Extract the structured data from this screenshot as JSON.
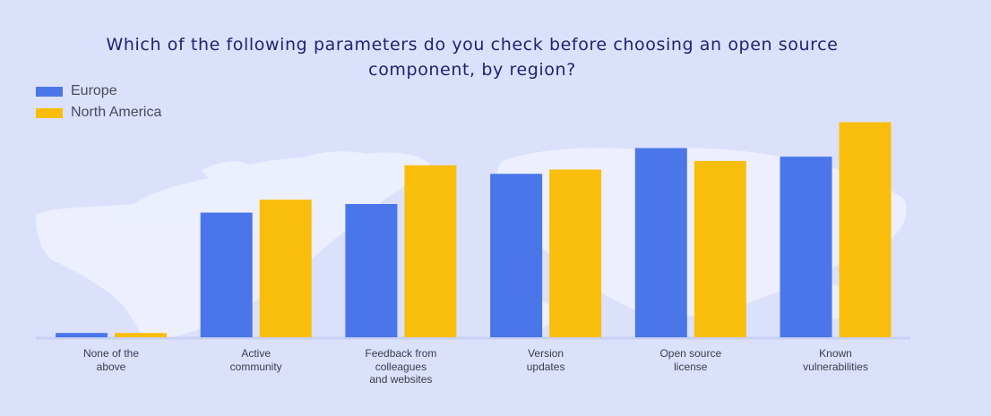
{
  "chart_data": {
    "type": "bar",
    "title": "Which of the following parameters do you check before choosing an open source component, by region?",
    "categories": [
      "None of the\nabove",
      "Active\ncommunity",
      "Feedback from\ncolleagues\nand websites",
      "Version\nupdates",
      "Open source\nlicense",
      "Known\nvulnerabilities"
    ],
    "series": [
      {
        "name": "Europe",
        "color": "#4a76ea",
        "values": [
          1,
          29,
          31,
          38,
          44,
          42
        ]
      },
      {
        "name": "North America",
        "color": "#f9be0b",
        "values": [
          1,
          32,
          40,
          39,
          41,
          50
        ]
      }
    ],
    "ylim": [
      0,
      52
    ],
    "legend_position": "top-left",
    "grid": false
  }
}
